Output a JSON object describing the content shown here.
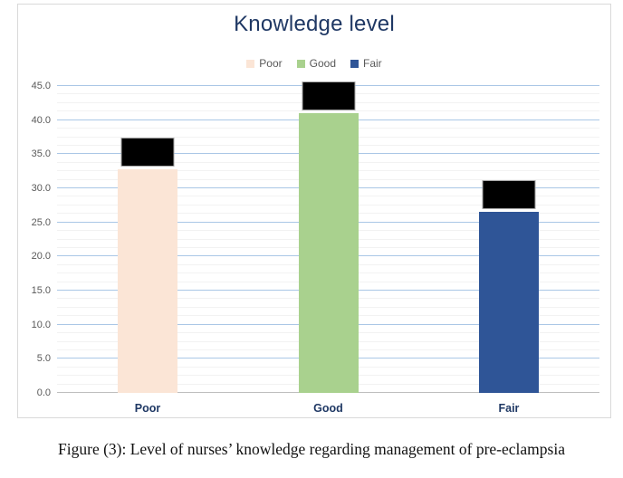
{
  "chart_data": {
    "type": "bar",
    "title": "Knowledge level",
    "categories": [
      "Poor",
      "Good",
      "Fair"
    ],
    "values": [
      32.8,
      41.0,
      26.5
    ],
    "bar_colors": [
      "#fbe5d6",
      "#a9d18e",
      "#2f5597"
    ],
    "data_labels_obscured_by_black_boxes": true,
    "xlabel": "",
    "ylabel": "",
    "ylim": [
      0,
      45
    ],
    "y_major_unit": 5,
    "y_minor_unit": 1.25,
    "y_tick_labels": [
      "0.0",
      "5.0",
      "10.0",
      "15.0",
      "20.0",
      "25.0",
      "30.0",
      "35.0",
      "40.0",
      "45.0"
    ],
    "grid": "horizontal major (light blue) + minor (faint gray)",
    "legend": {
      "position": "top",
      "entries": [
        {
          "label": "Poor",
          "color": "#fbe5d6"
        },
        {
          "label": "Good",
          "color": "#a9d18e"
        },
        {
          "label": "Fair",
          "color": "#2f5597"
        }
      ]
    }
  },
  "figure": {
    "caption": "Figure (3): Level of nurses’ knowledge regarding management of pre-eclampsia"
  },
  "colors": {
    "title_text": "#1f3864",
    "category_label_text": "#1f3864",
    "axis_tick_text": "#595959",
    "legend_text": "#595959",
    "major_gridline": "#aac7e6",
    "minor_gridline": "#f2f2f2",
    "axis_line": "#bfbfbf",
    "chart_border": "#d9d9d9",
    "label_box_fill": "#000000"
  }
}
